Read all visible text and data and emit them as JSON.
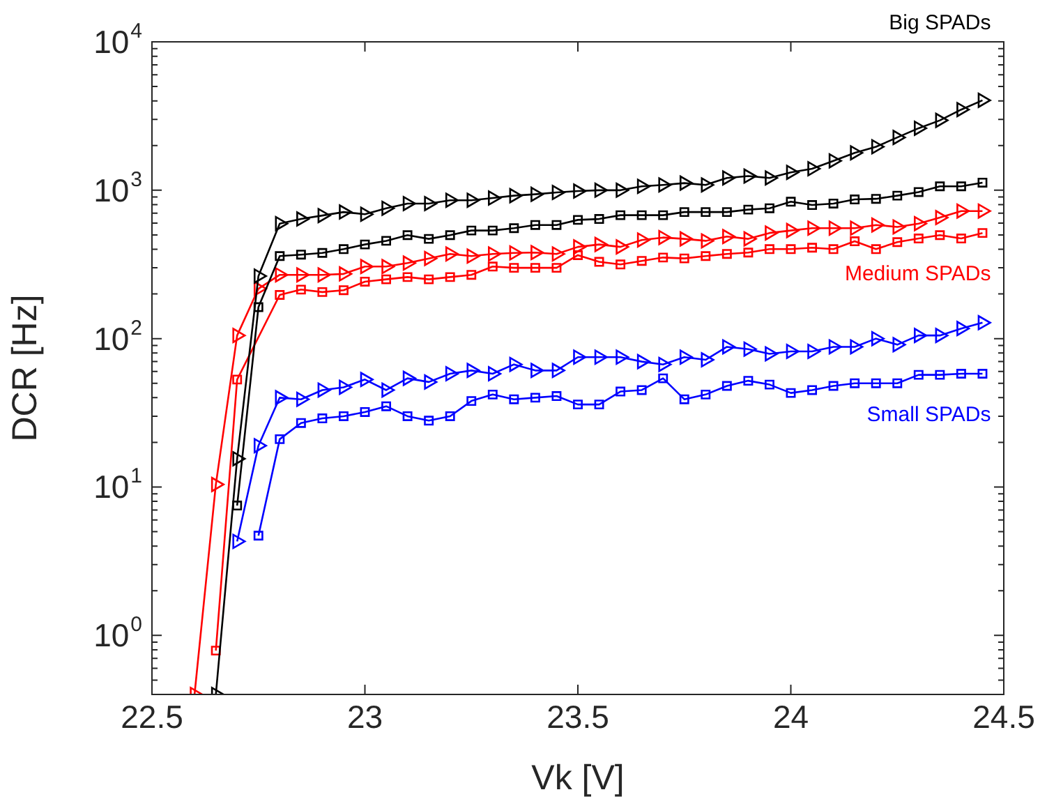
{
  "chart_data": {
    "type": "line",
    "xlabel": "Vk [V]",
    "ylabel": "DCR [Hz]",
    "log": "y",
    "grid": false,
    "legend": false,
    "line_style": "solid",
    "xlim": [
      22.5,
      24.5
    ],
    "xticks": [
      22.5,
      23,
      23.5,
      24,
      24.5
    ],
    "ylim": [
      0.4,
      10000
    ],
    "yticks": [
      {
        "value": 0.5,
        "label": null
      },
      {
        "value": 0.6,
        "label": null
      },
      {
        "value": 0.7,
        "label": null
      },
      {
        "value": 0.8,
        "label": null
      },
      {
        "value": 0.9,
        "label": null
      },
      {
        "value": 1,
        "label": "10$^{0}$"
      },
      {
        "value": 2,
        "label": null
      },
      {
        "value": 3,
        "label": null
      },
      {
        "value": 4,
        "label": null
      },
      {
        "value": 5,
        "label": null
      },
      {
        "value": 6,
        "label": null
      },
      {
        "value": 7,
        "label": null
      },
      {
        "value": 8,
        "label": null
      },
      {
        "value": 9,
        "label": null
      },
      {
        "value": 10,
        "label": "10$^{1}$"
      },
      {
        "value": 20,
        "label": null
      },
      {
        "value": 30,
        "label": null
      },
      {
        "value": 40,
        "label": null
      },
      {
        "value": 50,
        "label": null
      },
      {
        "value": 60,
        "label": null
      },
      {
        "value": 70,
        "label": null
      },
      {
        "value": 80,
        "label": null
      },
      {
        "value": 90,
        "label": null
      },
      {
        "value": 100,
        "label": "10$^{2}$"
      },
      {
        "value": 200,
        "label": null
      },
      {
        "value": 300,
        "label": null
      },
      {
        "value": 400,
        "label": null
      },
      {
        "value": 500,
        "label": null
      },
      {
        "value": 600,
        "label": null
      },
      {
        "value": 700,
        "label": null
      },
      {
        "value": 800,
        "label": null
      },
      {
        "value": 900,
        "label": null
      },
      {
        "value": 1000,
        "label": "10$^{3}$"
      },
      {
        "value": 2000,
        "label": null
      },
      {
        "value": 3000,
        "label": null
      },
      {
        "value": 4000,
        "label": null
      },
      {
        "value": 5000,
        "label": null
      },
      {
        "value": 6000,
        "label": null
      },
      {
        "value": 7000,
        "label": null
      },
      {
        "value": 8000,
        "label": null
      },
      {
        "value": 9000,
        "label": null
      },
      {
        "value": 10000,
        "label": "10$^{4}$"
      }
    ],
    "series": [
      {
        "name": "Big SPADs",
        "color": "#000000",
        "marker": "triangle",
        "x": [
          22.65,
          22.7,
          22.75,
          22.8,
          22.85,
          22.9,
          22.95,
          23,
          23.05,
          23.1,
          23.15,
          23.2,
          23.25,
          23.3,
          23.35,
          23.4,
          23.45,
          23.5,
          23.55,
          23.6,
          23.65,
          23.7,
          23.75,
          23.8,
          23.85,
          23.9,
          23.95,
          24,
          24.05,
          24.1,
          24.15,
          24.2,
          24.25,
          24.3,
          24.35,
          24.4,
          24.45
        ],
        "values": [
          0.4,
          15.5,
          264,
          596,
          640,
          675,
          713,
          689,
          756,
          813,
          813,
          856,
          856,
          886,
          919,
          939,
          966,
          987,
          1000,
          1000,
          1062,
          1086,
          1117,
          1086,
          1210,
          1245,
          1210,
          1320,
          1396,
          1578,
          1786,
          1963,
          2268,
          2617,
          2957,
          3494,
          4035
        ]
      },
      {
        "color": "#000000",
        "marker": "square",
        "x": [
          22.7,
          22.75,
          22.8,
          22.85,
          22.9,
          22.95,
          23,
          23.05,
          23.1,
          23.15,
          23.2,
          23.25,
          23.3,
          23.35,
          23.4,
          23.45,
          23.5,
          23.55,
          23.6,
          23.65,
          23.7,
          23.75,
          23.8,
          23.85,
          23.9,
          23.95,
          24,
          24.05,
          24.1,
          24.15,
          24.2,
          24.25,
          24.3,
          24.35,
          24.4,
          24.45
        ],
        "values": [
          7.5,
          163,
          360,
          368,
          378,
          401,
          431,
          456,
          498,
          470,
          498,
          535,
          535,
          555,
          583,
          583,
          631,
          640,
          679,
          679,
          679,
          713,
          713,
          713,
          740,
          756,
          837,
          795,
          813,
          867,
          875,
          919,
          972,
          1062,
          1062,
          1125
        ]
      },
      {
        "color": "#ff0000",
        "marker": "triangle",
        "x": [
          22.6,
          22.65,
          22.7,
          22.75,
          22.8,
          22.85,
          22.9,
          22.95,
          23,
          23.05,
          23.1,
          23.15,
          23.2,
          23.25,
          23.3,
          23.35,
          23.4,
          23.45,
          23.5,
          23.55,
          23.6,
          23.65,
          23.7,
          23.75,
          23.8,
          23.85,
          23.9,
          23.95,
          24,
          24.05,
          24.1,
          24.15,
          24.2,
          24.25,
          24.3,
          24.35,
          24.4,
          24.45
        ],
        "values": [
          0.4,
          10.4,
          105,
          217,
          269,
          269,
          269,
          273,
          306,
          306,
          323,
          347,
          372,
          360,
          372,
          378,
          380,
          372,
          415,
          431,
          415,
          462,
          480,
          470,
          456,
          487,
          470,
          515,
          535,
          555,
          555,
          555,
          583,
          566,
          596,
          654,
          724,
          724
        ]
      },
      {
        "name": "Medium SPADs",
        "color": "#ff0000",
        "marker": "square",
        "x": [
          22.65,
          22.7,
          22.75,
          22.8,
          22.85,
          22.9,
          22.95,
          23,
          23.05,
          23.1,
          23.15,
          23.2,
          23.25,
          23.3,
          23.35,
          23.4,
          23.45,
          23.5,
          23.55,
          23.6,
          23.65,
          23.7,
          23.75,
          23.8,
          23.85,
          23.9,
          23.95,
          24,
          24.05,
          24.1,
          24.15,
          24.2,
          24.25,
          24.3,
          24.35,
          24.4,
          24.45
        ],
        "values": [
          0.79,
          53,
          null,
          197,
          214,
          206,
          212,
          242,
          251,
          260,
          251,
          260,
          269,
          306,
          300,
          300,
          300,
          365,
          329,
          316,
          334,
          352,
          347,
          360,
          372,
          380,
          401,
          401,
          410,
          401,
          453,
          401,
          447,
          473,
          498,
          473,
          515
        ]
      },
      {
        "color": "#0000ff",
        "marker": "triangle",
        "x": [
          22.7,
          22.75,
          22.8,
          22.85,
          22.9,
          22.95,
          23,
          23.05,
          23.1,
          23.15,
          23.2,
          23.25,
          23.3,
          23.35,
          23.4,
          23.45,
          23.5,
          23.55,
          23.6,
          23.65,
          23.7,
          23.75,
          23.8,
          23.85,
          23.9,
          23.95,
          24,
          24.05,
          24.1,
          24.15,
          24.2,
          24.25,
          24.3,
          24.35,
          24.4,
          24.45
        ],
        "values": [
          4.3,
          19,
          40,
          39,
          45,
          47,
          53,
          45,
          54,
          51,
          58,
          61,
          58,
          67,
          61,
          61,
          75,
          75,
          75,
          70,
          67,
          75,
          72,
          88,
          85,
          79,
          82,
          82,
          88,
          88,
          100,
          91,
          105,
          105,
          117,
          128
        ]
      },
      {
        "name": "Small SPADs",
        "color": "#0000ff",
        "marker": "square",
        "x": [
          22.75,
          22.8,
          22.85,
          22.9,
          22.95,
          23,
          23.05,
          23.1,
          23.15,
          23.2,
          23.25,
          23.3,
          23.35,
          23.4,
          23.45,
          23.5,
          23.55,
          23.6,
          23.65,
          23.7,
          23.75,
          23.8,
          23.85,
          23.9,
          23.95,
          24,
          24.05,
          24.1,
          24.15,
          24.2,
          24.25,
          24.3,
          24.35,
          24.4,
          24.45
        ],
        "values": [
          4.7,
          21,
          27,
          29,
          30,
          32,
          35,
          30,
          28,
          30,
          38,
          42,
          39,
          40,
          41,
          36,
          36,
          44,
          45,
          54,
          39,
          42,
          48,
          52,
          49,
          43,
          45,
          48,
          50,
          50,
          50,
          57,
          57,
          58,
          58
        ]
      }
    ]
  }
}
